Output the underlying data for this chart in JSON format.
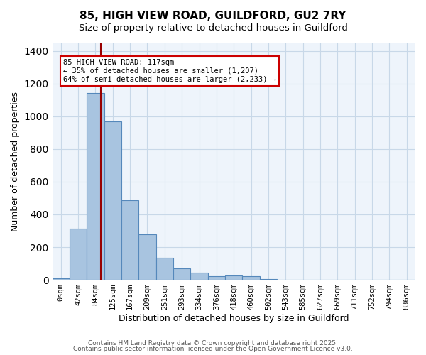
{
  "title_line1": "85, HIGH VIEW ROAD, GUILDFORD, GU2 7RY",
  "title_line2": "Size of property relative to detached houses in Guildford",
  "xlabel": "Distribution of detached houses by size in Guildford",
  "ylabel": "Number of detached properties",
  "bar_values": [
    10,
    315,
    1140,
    970,
    485,
    280,
    135,
    68,
    45,
    22,
    27,
    22,
    5,
    2,
    2,
    1,
    1,
    0,
    0,
    0,
    0
  ],
  "bar_labels": [
    "0sqm",
    "42sqm",
    "84sqm",
    "125sqm",
    "167sqm",
    "209sqm",
    "251sqm",
    "293sqm",
    "334sqm",
    "376sqm",
    "418sqm",
    "460sqm",
    "502sqm",
    "543sqm",
    "585sqm",
    "627sqm",
    "669sqm",
    "711sqm",
    "752sqm",
    "794sqm",
    "836sqm"
  ],
  "bar_color": "#a8c4e0",
  "bar_edge_color": "#5588bb",
  "grid_color": "#c8d8e8",
  "background_color": "#eef4fb",
  "vline_x": 2.33,
  "vline_color": "#990000",
  "annotation_text": "85 HIGH VIEW ROAD: 117sqm\n← 35% of detached houses are smaller (1,207)\n64% of semi-detached houses are larger (2,233) →",
  "annotation_box_color": "#ffffff",
  "annotation_box_edge": "#cc0000",
  "ylim": [
    0,
    1450
  ],
  "footer_line1": "Contains HM Land Registry data © Crown copyright and database right 2025.",
  "footer_line2": "Contains public sector information licensed under the Open Government Licence v3.0."
}
